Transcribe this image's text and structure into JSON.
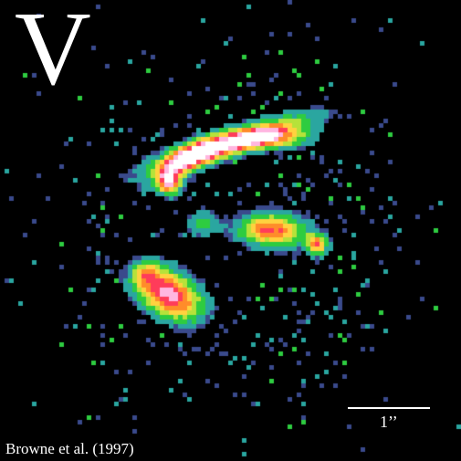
{
  "panel": {
    "band_letter": "V",
    "scale_label": "1’’",
    "credit": "Browne et al. (1997)"
  },
  "colors": {
    "background": "#000000",
    "text": "#ffffff",
    "colormap": [
      "#3a4a8c",
      "#2aa6a0",
      "#2ecc40",
      "#b6e23a",
      "#ffd23f",
      "#ff8c2a",
      "#ff3c5a",
      "#ffb6e0",
      "#ffffff"
    ]
  }
}
